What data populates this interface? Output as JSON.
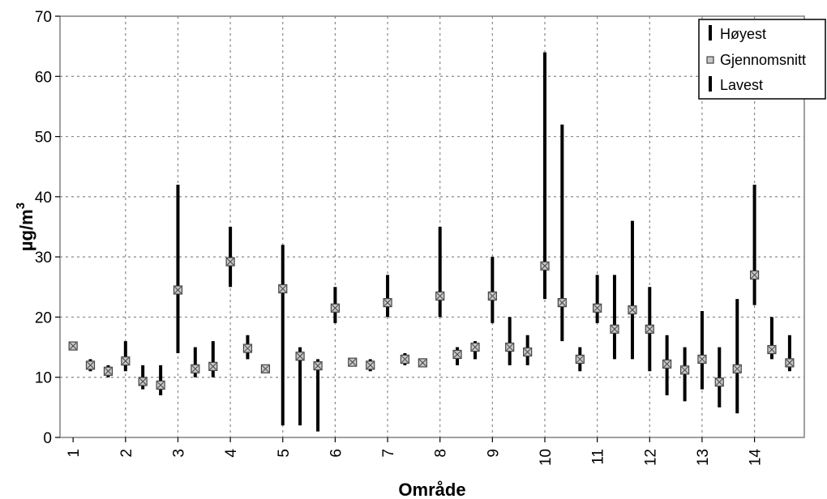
{
  "chart_data": {
    "type": "stock-range",
    "title": "",
    "xlabel": "Område",
    "ylabel": "µg/m³",
    "ylabel_base": "µg/m",
    "ylabel_sup": "3",
    "ylim": [
      0,
      70
    ],
    "yticks": [
      0,
      10,
      20,
      30,
      40,
      50,
      60,
      70
    ],
    "categories": [
      "1",
      "2",
      "3",
      "4",
      "5",
      "6",
      "7",
      "8",
      "9",
      "10",
      "11",
      "12",
      "13",
      "14"
    ],
    "points": [
      {
        "x": 1.0,
        "high": 15.5,
        "avg": 15.2,
        "low": 15.0
      },
      {
        "x": 1.33,
        "high": 13.0,
        "avg": 12.0,
        "low": 11.0
      },
      {
        "x": 1.67,
        "high": 12.0,
        "avg": 11.0,
        "low": 10.0
      },
      {
        "x": 2.0,
        "high": 16.0,
        "avg": 12.7,
        "low": 11.0
      },
      {
        "x": 2.33,
        "high": 12.0,
        "avg": 9.3,
        "low": 8.0
      },
      {
        "x": 2.67,
        "high": 12.0,
        "avg": 8.7,
        "low": 7.0
      },
      {
        "x": 3.0,
        "high": 42.0,
        "avg": 24.5,
        "low": 14.0
      },
      {
        "x": 3.33,
        "high": 15.0,
        "avg": 11.4,
        "low": 10.0
      },
      {
        "x": 3.67,
        "high": 16.0,
        "avg": 11.8,
        "low": 10.0
      },
      {
        "x": 4.0,
        "high": 35.0,
        "avg": 29.2,
        "low": 25.0
      },
      {
        "x": 4.33,
        "high": 17.0,
        "avg": 14.8,
        "low": 13.0
      },
      {
        "x": 4.67,
        "high": 12.0,
        "avg": 11.4,
        "low": 11.0
      },
      {
        "x": 5.0,
        "high": 32.0,
        "avg": 24.7,
        "low": 2.0
      },
      {
        "x": 5.33,
        "high": 15.0,
        "avg": 13.5,
        "low": 2.0
      },
      {
        "x": 5.67,
        "high": 13.0,
        "avg": 11.9,
        "low": 1.0
      },
      {
        "x": 6.0,
        "high": 25.0,
        "avg": 21.5,
        "low": 19.0
      },
      {
        "x": 6.33,
        "high": 13.0,
        "avg": 12.5,
        "low": 12.0
      },
      {
        "x": 6.67,
        "high": 13.0,
        "avg": 12.0,
        "low": 11.0
      },
      {
        "x": 7.0,
        "high": 27.0,
        "avg": 22.4,
        "low": 20.0
      },
      {
        "x": 7.33,
        "high": 14.0,
        "avg": 13.0,
        "low": 12.0
      },
      {
        "x": 7.67,
        "high": 13.0,
        "avg": 12.4,
        "low": 12.0
      },
      {
        "x": 8.0,
        "high": 35.0,
        "avg": 23.5,
        "low": 20.0
      },
      {
        "x": 8.33,
        "high": 15.0,
        "avg": 13.8,
        "low": 12.0
      },
      {
        "x": 8.67,
        "high": 16.0,
        "avg": 15.0,
        "low": 13.0
      },
      {
        "x": 9.0,
        "high": 30.0,
        "avg": 23.5,
        "low": 19.0
      },
      {
        "x": 9.33,
        "high": 20.0,
        "avg": 15.0,
        "low": 12.0
      },
      {
        "x": 9.67,
        "high": 17.0,
        "avg": 14.2,
        "low": 12.0
      },
      {
        "x": 10.0,
        "high": 64.0,
        "avg": 28.5,
        "low": 23.0
      },
      {
        "x": 10.33,
        "high": 52.0,
        "avg": 22.4,
        "low": 16.0
      },
      {
        "x": 10.67,
        "high": 15.0,
        "avg": 13.0,
        "low": 11.0
      },
      {
        "x": 11.0,
        "high": 27.0,
        "avg": 21.5,
        "low": 19.0
      },
      {
        "x": 11.33,
        "high": 27.0,
        "avg": 18.0,
        "low": 13.0
      },
      {
        "x": 11.67,
        "high": 36.0,
        "avg": 21.2,
        "low": 13.0
      },
      {
        "x": 12.0,
        "high": 25.0,
        "avg": 18.0,
        "low": 11.0
      },
      {
        "x": 12.33,
        "high": 17.0,
        "avg": 12.2,
        "low": 7.0
      },
      {
        "x": 12.67,
        "high": 15.0,
        "avg": 11.2,
        "low": 6.0
      },
      {
        "x": 13.0,
        "high": 21.0,
        "avg": 13.0,
        "low": 8.0
      },
      {
        "x": 13.33,
        "high": 15.0,
        "avg": 9.2,
        "low": 5.0
      },
      {
        "x": 13.67,
        "high": 23.0,
        "avg": 11.4,
        "low": 4.0
      },
      {
        "x": 14.0,
        "high": 42.0,
        "avg": 27.0,
        "low": 22.0
      },
      {
        "x": 14.33,
        "high": 20.0,
        "avg": 14.6,
        "low": 13.0
      },
      {
        "x": 14.67,
        "high": 17.0,
        "avg": 12.4,
        "low": 11.0
      }
    ],
    "legend": {
      "position": "top-right",
      "entries": [
        "Høyest",
        "Gjennomsnitt",
        "Lavest"
      ]
    },
    "grid": true,
    "grid_style": "dotted",
    "colors": {
      "range": "#000000",
      "marker_fill": "#c8c8c8",
      "marker_stroke": "#444444",
      "grid": "#888888"
    }
  }
}
